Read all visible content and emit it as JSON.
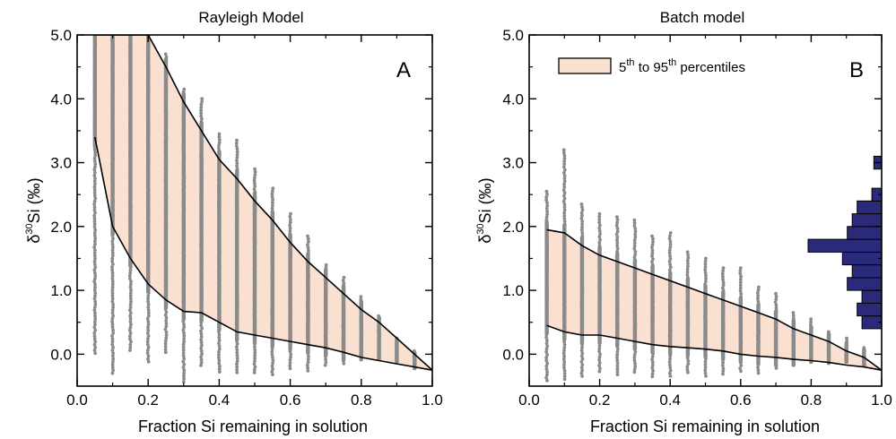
{
  "colors": {
    "band_fill": "#f9e0d0",
    "points": "#8a8a8a",
    "hist_fill": "#2b2a7a",
    "axis": "#000000"
  },
  "chart_data": [
    {
      "type": "scatter",
      "panel": "A",
      "title": "Rayleigh Model",
      "xlabel": "Fraction Si remaining in solution",
      "ylabel_main": "δ",
      "ylabel_sup": "30",
      "ylabel_rest": "Si (‰)",
      "xlim": [
        0.0,
        1.0
      ],
      "ylim": [
        -0.5,
        5.0
      ],
      "x_ticks": [
        "0.0",
        "0.2",
        "0.4",
        "0.6",
        "0.8",
        "1.0"
      ],
      "y_ticks": [
        "0.0",
        "1.0",
        "2.0",
        "3.0",
        "4.0",
        "5.0"
      ],
      "point_columns": [
        {
          "x": 0.05,
          "min": 0.0,
          "max": 5.0
        },
        {
          "x": 0.1,
          "min": -0.3,
          "max": 5.0
        },
        {
          "x": 0.15,
          "min": 0.05,
          "max": 5.0
        },
        {
          "x": 0.2,
          "min": -0.15,
          "max": 5.0
        },
        {
          "x": 0.25,
          "min": 0.0,
          "max": 4.7
        },
        {
          "x": 0.3,
          "min": -0.45,
          "max": 4.15
        },
        {
          "x": 0.35,
          "min": -0.2,
          "max": 4.0
        },
        {
          "x": 0.4,
          "min": -0.3,
          "max": 3.45
        },
        {
          "x": 0.45,
          "min": -0.3,
          "max": 3.35
        },
        {
          "x": 0.5,
          "min": -0.3,
          "max": 2.9
        },
        {
          "x": 0.55,
          "min": -0.35,
          "max": 2.6
        },
        {
          "x": 0.6,
          "min": -0.25,
          "max": 2.2
        },
        {
          "x": 0.65,
          "min": -0.3,
          "max": 1.85
        },
        {
          "x": 0.7,
          "min": -0.2,
          "max": 1.4
        },
        {
          "x": 0.75,
          "min": -0.15,
          "max": 1.2
        },
        {
          "x": 0.8,
          "min": -0.1,
          "max": 0.9
        },
        {
          "x": 0.85,
          "min": -0.1,
          "max": 0.6
        },
        {
          "x": 0.9,
          "min": -0.15,
          "max": 0.25
        },
        {
          "x": 0.95,
          "min": -0.25,
          "max": 0.05
        }
      ],
      "band": {
        "name": "5th to 95th percentiles",
        "x": [
          0.05,
          0.1,
          0.15,
          0.2,
          0.25,
          0.3,
          0.35,
          0.4,
          0.45,
          0.5,
          0.55,
          0.6,
          0.65,
          0.7,
          0.75,
          0.8,
          0.85,
          0.9,
          0.95,
          1.0
        ],
        "upper": [
          5.0,
          5.0,
          5.0,
          5.0,
          4.5,
          3.95,
          3.5,
          3.05,
          2.75,
          2.4,
          2.1,
          1.75,
          1.45,
          1.2,
          0.95,
          0.7,
          0.5,
          0.25,
          0.0,
          -0.25
        ],
        "lower": [
          3.4,
          2.0,
          1.5,
          1.1,
          0.85,
          0.67,
          0.65,
          0.5,
          0.35,
          0.3,
          0.25,
          0.2,
          0.15,
          0.1,
          0.03,
          -0.05,
          -0.1,
          -0.15,
          -0.2,
          -0.25
        ]
      },
      "panel_label": "A"
    },
    {
      "type": "scatter",
      "panel": "B",
      "title": "Batch model",
      "xlabel": "Fraction Si remaining in solution",
      "ylabel_main": "δ",
      "ylabel_sup": "30",
      "ylabel_rest": "Si (‰)",
      "xlim": [
        0.0,
        1.0
      ],
      "ylim": [
        -0.5,
        5.0
      ],
      "x_ticks": [
        "0.0",
        "0.2",
        "0.4",
        "0.6",
        "0.8",
        "1.0"
      ],
      "y_ticks": [
        "0.0",
        "1.0",
        "2.0",
        "3.0",
        "4.0",
        "5.0"
      ],
      "point_columns": [
        {
          "x": 0.05,
          "min": -0.45,
          "max": 2.55
        },
        {
          "x": 0.1,
          "min": -0.4,
          "max": 3.2
        },
        {
          "x": 0.15,
          "min": -0.35,
          "max": 2.35
        },
        {
          "x": 0.2,
          "min": -0.3,
          "max": 2.2
        },
        {
          "x": 0.25,
          "min": -0.35,
          "max": 2.15
        },
        {
          "x": 0.3,
          "min": -0.3,
          "max": 2.1
        },
        {
          "x": 0.35,
          "min": -0.35,
          "max": 1.85
        },
        {
          "x": 0.4,
          "min": -0.35,
          "max": 1.9
        },
        {
          "x": 0.45,
          "min": -0.3,
          "max": 1.6
        },
        {
          "x": 0.5,
          "min": -0.35,
          "max": 1.5
        },
        {
          "x": 0.55,
          "min": -0.35,
          "max": 1.35
        },
        {
          "x": 0.6,
          "min": -0.3,
          "max": 1.35
        },
        {
          "x": 0.65,
          "min": -0.3,
          "max": 1.05
        },
        {
          "x": 0.7,
          "min": -0.25,
          "max": 0.95
        },
        {
          "x": 0.75,
          "min": -0.2,
          "max": 0.65
        },
        {
          "x": 0.8,
          "min": -0.15,
          "max": 0.55
        },
        {
          "x": 0.85,
          "min": -0.15,
          "max": 0.35
        },
        {
          "x": 0.9,
          "min": -0.15,
          "max": 0.25
        },
        {
          "x": 0.95,
          "min": -0.2,
          "max": 0.1
        }
      ],
      "band": {
        "name": "5th to 95th percentiles",
        "x": [
          0.05,
          0.1,
          0.15,
          0.2,
          0.25,
          0.3,
          0.35,
          0.4,
          0.45,
          0.5,
          0.55,
          0.6,
          0.65,
          0.7,
          0.75,
          0.8,
          0.85,
          0.9,
          0.95,
          1.0
        ],
        "upper": [
          1.95,
          1.9,
          1.7,
          1.55,
          1.45,
          1.35,
          1.25,
          1.15,
          1.05,
          0.95,
          0.85,
          0.75,
          0.65,
          0.55,
          0.4,
          0.3,
          0.2,
          0.05,
          -0.05,
          -0.25
        ],
        "lower": [
          0.45,
          0.35,
          0.3,
          0.3,
          0.25,
          0.2,
          0.15,
          0.12,
          0.1,
          0.08,
          0.05,
          0.0,
          -0.03,
          -0.05,
          -0.08,
          -0.1,
          -0.13,
          -0.17,
          -0.2,
          -0.25
        ]
      },
      "histogram": {
        "orientation": "horizontal",
        "bins": [
          {
            "low": 0.4,
            "high": 0.6,
            "count": 0.2
          },
          {
            "low": 0.6,
            "high": 0.8,
            "count": 0.25
          },
          {
            "low": 0.8,
            "high": 1.0,
            "count": 0.2
          },
          {
            "low": 1.0,
            "high": 1.2,
            "count": 0.35
          },
          {
            "low": 1.2,
            "high": 1.4,
            "count": 0.3
          },
          {
            "low": 1.4,
            "high": 1.6,
            "count": 0.4
          },
          {
            "low": 1.6,
            "high": 1.8,
            "count": 0.75
          },
          {
            "low": 1.8,
            "high": 2.0,
            "count": 0.35
          },
          {
            "low": 2.0,
            "high": 2.2,
            "count": 0.3
          },
          {
            "low": 2.2,
            "high": 2.4,
            "count": 0.25
          },
          {
            "low": 2.4,
            "high": 2.6,
            "count": 0.1
          },
          {
            "low": 2.9,
            "high": 3.1,
            "count": 0.08
          }
        ]
      },
      "legend": {
        "location": "top-center",
        "label_pre": "5",
        "label_sup1": "th",
        "label_mid": " to 95",
        "label_sup2": "th",
        "label_post": " percentiles"
      },
      "panel_label": "B"
    }
  ]
}
